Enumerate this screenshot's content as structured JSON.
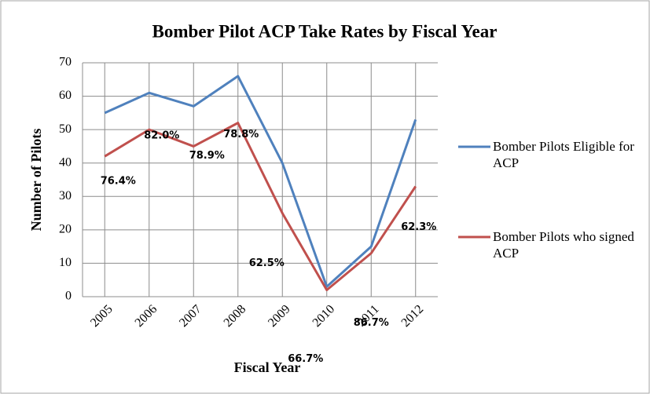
{
  "chart_data": {
    "type": "line",
    "title": "Bomber Pilot ACP Take Rates by Fiscal Year",
    "x_label": "Fiscal Year",
    "y_label": "Number of Pilots",
    "categories": [
      "2005",
      "2006",
      "2007",
      "2008",
      "2009",
      "2010",
      "2011",
      "2012"
    ],
    "series": [
      {
        "name": "Bomber Pilots Eligible for ACP",
        "color": "#4f81bd",
        "values": [
          55,
          61,
          57,
          66,
          40,
          3,
          15,
          53
        ]
      },
      {
        "name": "Bomber Pilots who signed ACP",
        "color": "#c0504d",
        "values": [
          42,
          50,
          45,
          52,
          25,
          2,
          13,
          33
        ]
      }
    ],
    "annotations": [
      "76.4%",
      "82.0%",
      "78.9%",
      "78.8%",
      "62.5%",
      "66.7%",
      "86.7%",
      "62.3%"
    ],
    "ylim": [
      0,
      70
    ],
    "yticks": [
      0,
      10,
      20,
      30,
      40,
      50,
      60,
      70
    ],
    "grid": true,
    "legend": "right"
  }
}
